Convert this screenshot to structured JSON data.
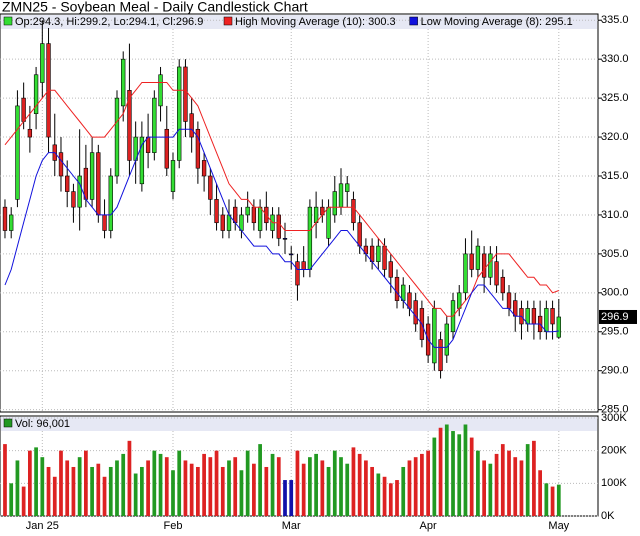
{
  "chart_data": {
    "type": "candlestick",
    "title": "ZMN25 - Soybean Meal - Daily Candlestick Chart",
    "ohlc_legend": "Op:294.3, Hi:299.2, Lo:294.1, Cl:296.9",
    "colors": {
      "up": "#33dd33",
      "down": "#dd2222",
      "flat": "#1111aa"
    },
    "ohlc": [
      [
        311,
        312,
        307,
        308
      ],
      [
        308,
        311,
        307,
        310
      ],
      [
        312,
        326,
        311,
        324
      ],
      [
        325,
        327,
        321,
        322
      ],
      [
        321,
        324,
        318,
        320
      ],
      [
        323,
        329,
        321,
        328
      ],
      [
        327,
        335,
        325,
        332
      ],
      [
        332,
        334,
        318,
        320
      ],
      [
        319,
        323,
        315,
        317
      ],
      [
        318,
        320,
        313,
        315
      ],
      [
        315,
        317,
        311,
        313
      ],
      [
        313,
        314,
        309,
        311
      ],
      [
        311,
        321,
        308,
        315
      ],
      [
        316,
        319,
        311,
        312
      ],
      [
        312,
        320,
        311,
        318
      ],
      [
        318,
        319,
        309,
        310
      ],
      [
        310,
        312,
        307,
        308
      ],
      [
        308,
        316,
        307,
        315
      ],
      [
        315,
        326,
        314,
        325
      ],
      [
        324,
        331,
        322,
        330
      ],
      [
        326,
        332,
        315,
        317
      ],
      [
        317,
        322,
        314,
        320
      ],
      [
        314,
        322,
        313,
        320
      ],
      [
        320,
        323,
        316,
        318
      ],
      [
        318,
        326,
        317,
        325
      ],
      [
        324,
        329,
        322,
        328
      ],
      [
        321,
        324,
        315,
        316
      ],
      [
        313,
        318,
        312,
        317
      ],
      [
        317,
        330,
        316,
        329
      ],
      [
        329,
        330,
        320,
        322
      ],
      [
        323,
        325,
        318,
        320
      ],
      [
        321,
        322,
        314,
        316
      ],
      [
        317,
        318,
        313,
        315
      ],
      [
        315,
        316,
        310,
        312
      ],
      [
        312,
        314,
        308,
        309
      ],
      [
        310,
        311,
        307,
        308
      ],
      [
        308,
        312,
        307,
        310
      ],
      [
        311,
        312,
        308,
        309
      ],
      [
        308,
        311,
        307,
        310
      ],
      [
        310,
        313,
        309,
        311
      ],
      [
        311,
        312,
        308,
        309
      ],
      [
        308,
        312,
        307,
        311
      ],
      [
        311,
        313,
        308,
        309
      ],
      [
        308,
        311,
        307,
        310
      ],
      [
        310,
        311,
        306,
        307
      ],
      [
        307,
        309,
        305,
        307
      ],
      [
        305,
        306,
        303,
        305
      ],
      [
        304,
        305,
        299,
        301
      ],
      [
        304,
        306,
        302,
        303
      ],
      [
        303,
        312,
        302,
        311
      ],
      [
        309,
        313,
        307,
        311
      ],
      [
        311,
        312,
        309,
        310
      ],
      [
        307,
        312,
        306,
        311
      ],
      [
        310,
        315,
        309,
        313
      ],
      [
        311,
        316,
        310,
        314
      ],
      [
        313,
        315,
        311,
        314
      ],
      [
        312,
        313,
        308,
        309
      ],
      [
        309,
        310,
        305,
        306
      ],
      [
        306,
        307,
        304,
        305
      ],
      [
        306,
        307,
        303,
        304
      ],
      [
        304,
        307,
        303,
        306
      ],
      [
        306,
        307,
        302,
        303
      ],
      [
        304,
        305,
        300,
        302
      ],
      [
        302,
        303,
        298,
        299
      ],
      [
        299,
        302,
        298,
        301
      ],
      [
        300,
        301,
        297,
        298
      ],
      [
        299,
        300,
        295,
        296
      ],
      [
        298,
        299,
        293,
        294
      ],
      [
        296,
        297,
        291,
        292
      ],
      [
        291,
        299,
        290,
        298
      ],
      [
        294,
        295,
        289,
        290
      ],
      [
        292,
        297,
        291,
        296
      ],
      [
        295,
        300,
        294,
        299
      ],
      [
        298,
        301,
        297,
        300
      ],
      [
        300,
        307,
        299,
        305
      ],
      [
        305,
        308,
        302,
        303
      ],
      [
        303,
        307,
        302,
        306
      ],
      [
        305,
        306,
        300,
        302
      ],
      [
        302,
        306,
        301,
        305
      ],
      [
        304,
        306,
        300,
        301
      ],
      [
        302,
        303,
        299,
        300
      ],
      [
        300,
        301,
        297,
        298
      ],
      [
        299,
        300,
        295,
        297
      ],
      [
        298,
        299,
        294,
        296
      ],
      [
        296,
        299,
        295,
        298
      ],
      [
        298,
        299,
        294,
        296
      ],
      [
        297,
        299,
        294,
        295
      ],
      [
        295,
        299,
        294,
        298
      ],
      [
        298,
        299,
        294,
        296
      ],
      [
        294.3,
        299.2,
        294.1,
        296.9
      ]
    ],
    "series": [
      {
        "name": "High Moving Average (10): 300.3",
        "color": "#ee2222",
        "values": [
          319,
          320,
          321,
          322,
          323,
          324,
          325,
          326,
          326,
          325,
          324,
          323,
          322,
          321,
          320,
          320,
          320,
          321,
          322,
          323,
          325,
          326,
          327,
          327,
          327,
          327,
          327,
          326,
          326,
          326,
          325,
          324,
          322,
          320,
          318,
          316,
          314,
          313,
          312,
          312,
          311,
          311,
          310,
          309,
          309,
          308,
          308,
          308,
          308,
          308,
          309,
          310,
          311,
          311,
          311,
          311,
          311,
          310,
          309,
          308,
          307,
          306,
          305,
          304,
          303,
          302,
          301,
          300,
          299,
          298,
          298,
          297,
          297,
          298,
          299,
          300,
          302,
          303,
          304,
          305,
          305,
          305,
          304,
          303,
          302,
          302,
          301,
          301,
          300,
          300.3
        ]
      },
      {
        "name": "Low Moving Average (8): 295.1",
        "color": "#1111dd",
        "values": [
          301,
          303,
          306,
          309,
          312,
          315,
          317,
          318,
          318,
          317,
          316,
          315,
          314,
          312,
          311,
          310,
          310,
          310,
          311,
          313,
          315,
          317,
          319,
          320,
          320,
          320,
          320,
          320,
          321,
          321,
          321,
          320,
          318,
          316,
          314,
          312,
          310,
          309,
          308,
          307,
          306,
          306,
          306,
          305,
          305,
          304,
          304,
          303,
          303,
          303,
          304,
          305,
          306,
          307,
          308,
          308,
          307,
          306,
          305,
          304,
          303,
          302,
          301,
          300,
          299,
          298,
          297,
          296,
          294,
          293,
          293,
          293,
          294,
          296,
          298,
          300,
          301,
          301,
          300,
          299,
          298,
          298,
          297,
          297,
          296,
          296,
          296,
          295,
          295,
          295.1
        ]
      }
    ],
    "ylim": [
      284.7,
      335.8
    ],
    "yticks": [
      {
        "value": 285,
        "label": "285.0"
      },
      {
        "value": 290,
        "label": "290.0"
      },
      {
        "value": 295,
        "label": "295.0"
      },
      {
        "value": 300,
        "label": "300.0"
      },
      {
        "value": 305,
        "label": "305.0"
      },
      {
        "value": 310,
        "label": "310.0"
      },
      {
        "value": 315,
        "label": "315.0"
      },
      {
        "value": 320,
        "label": "320.0"
      },
      {
        "value": 325,
        "label": "325.0"
      },
      {
        "value": 330,
        "label": "330.0"
      },
      {
        "value": 335,
        "label": "335.0"
      }
    ],
    "xlim": [
      -0.8,
      95.3
    ],
    "xticks": [
      {
        "value": 6,
        "label": "Jan 25"
      },
      {
        "value": 27,
        "label": "Feb"
      },
      {
        "value": 46,
        "label": "Mar"
      },
      {
        "value": 68,
        "label": "Apr"
      },
      {
        "value": 89,
        "label": "May"
      }
    ],
    "grid": true,
    "volume": {
      "legend": "Vol: 96,001",
      "values": [
        220000,
        100000,
        170000,
        90000,
        200000,
        210000,
        180000,
        150000,
        120000,
        200000,
        170000,
        150000,
        180000,
        200000,
        150000,
        160000,
        120000,
        150000,
        170000,
        190000,
        230000,
        130000,
        150000,
        170000,
        200000,
        190000,
        180000,
        140000,
        200000,
        170000,
        160000,
        150000,
        190000,
        180000,
        200000,
        150000,
        170000,
        180000,
        140000,
        200000,
        160000,
        220000,
        150000,
        190000,
        180000,
        110000,
        110000,
        200000,
        160000,
        180000,
        190000,
        170000,
        150000,
        200000,
        180000,
        160000,
        210000,
        190000,
        170000,
        150000,
        130000,
        120000,
        100000,
        110000,
        150000,
        170000,
        180000,
        190000,
        200000,
        240000,
        270000,
        280000,
        260000,
        250000,
        280000,
        240000,
        200000,
        170000,
        160000,
        190000,
        220000,
        200000,
        180000,
        170000,
        220000,
        230000,
        140000,
        100000,
        90000,
        96001
      ],
      "ylim": [
        0,
        306000
      ],
      "yticks": [
        {
          "value": 0,
          "label": "0K"
        },
        {
          "value": 100000,
          "label": "100K"
        },
        {
          "value": 200000,
          "label": "200K"
        },
        {
          "value": 300000,
          "label": "300K"
        }
      ]
    }
  }
}
